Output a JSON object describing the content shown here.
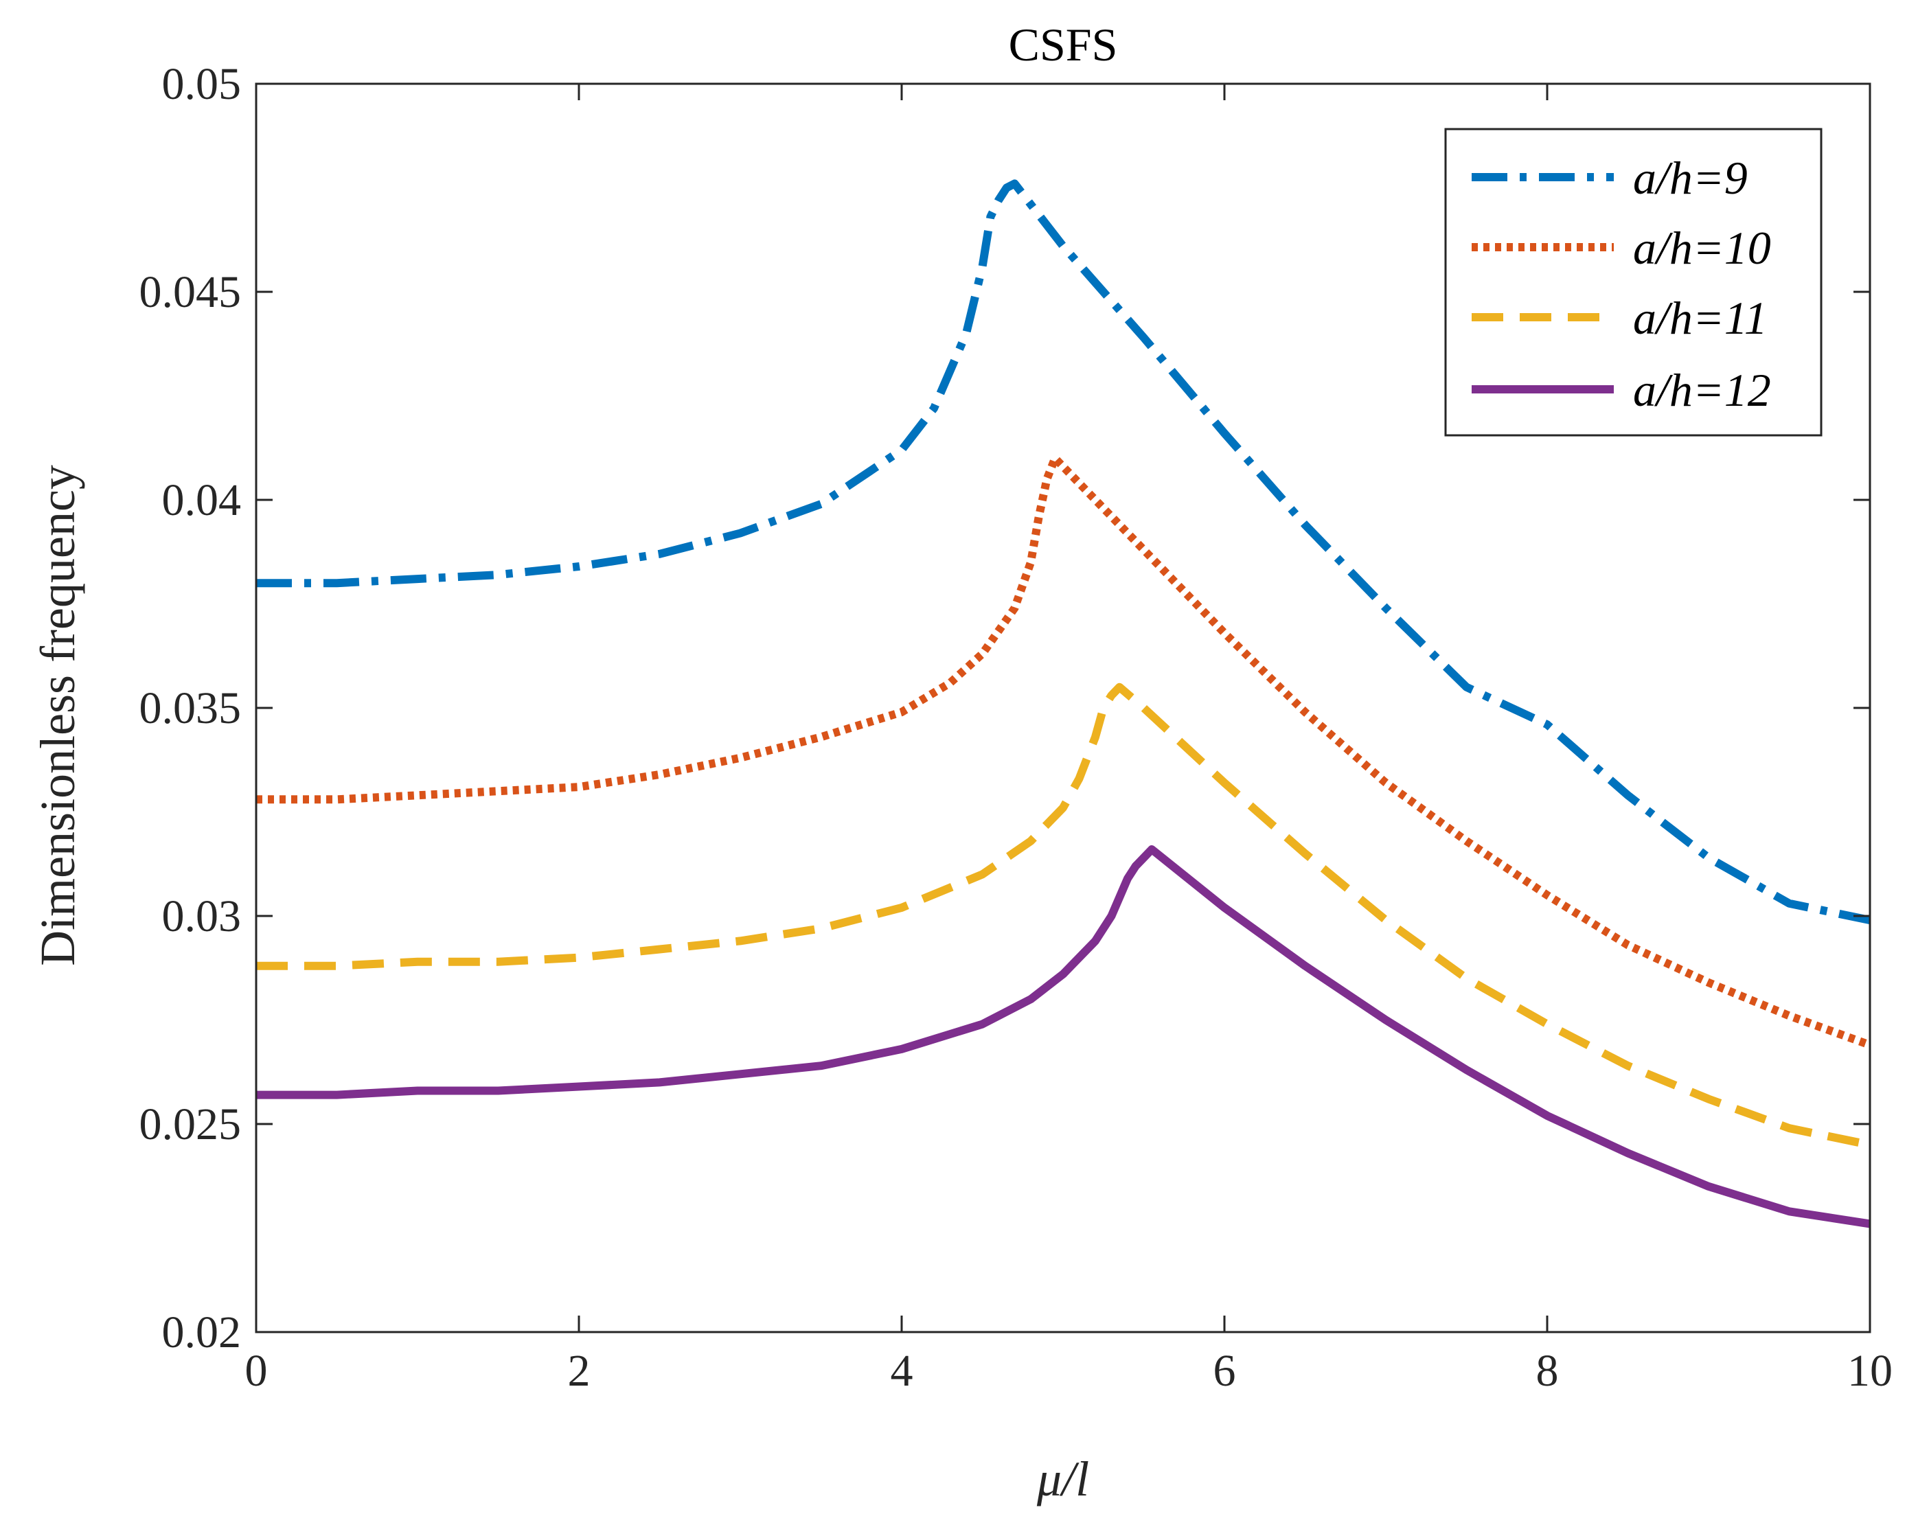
{
  "chart_data": {
    "type": "line",
    "title": "CSFS",
    "xlabel": "μ/l",
    "ylabel": "Dimensionless frequency",
    "xlim": [
      0,
      10
    ],
    "ylim": [
      0.02,
      0.05
    ],
    "xticks": [
      0,
      2,
      4,
      6,
      8,
      10
    ],
    "xtick_labels": [
      "0",
      "2",
      "4",
      "6",
      "8",
      "10"
    ],
    "yticks": [
      0.02,
      0.025,
      0.03,
      0.035,
      0.04,
      0.045,
      0.05
    ],
    "ytick_labels": [
      "0.02",
      "0.025",
      "0.03",
      "0.035",
      "0.04",
      "0.045",
      "0.05"
    ],
    "grid": false,
    "legend_position": "top-right",
    "series": [
      {
        "name": "a/h=9",
        "color": "#0072BD",
        "style": "dashdot",
        "x": [
          0,
          0.5,
          1.0,
          1.5,
          2.0,
          2.5,
          3.0,
          3.5,
          4.0,
          4.2,
          4.4,
          4.5,
          4.55,
          4.6,
          4.65,
          4.7,
          5.0,
          5.5,
          6.0,
          6.5,
          7.0,
          7.5,
          8.0,
          8.5,
          9.0,
          9.5,
          10.0
        ],
        "y": [
          0.038,
          0.038,
          0.0381,
          0.0382,
          0.0384,
          0.0387,
          0.0392,
          0.0399,
          0.0412,
          0.0422,
          0.044,
          0.0456,
          0.0468,
          0.0472,
          0.0475,
          0.0476,
          0.0461,
          0.0439,
          0.0416,
          0.0394,
          0.0374,
          0.0355,
          0.0346,
          0.0329,
          0.0314,
          0.0303,
          0.0299
        ]
      },
      {
        "name": "a/h=10",
        "color": "#D95319",
        "style": "dotted",
        "x": [
          0,
          0.5,
          1.0,
          1.5,
          2.0,
          2.5,
          3.0,
          3.5,
          4.0,
          4.3,
          4.5,
          4.7,
          4.8,
          4.85,
          4.9,
          4.95,
          5.0,
          5.5,
          6.0,
          6.5,
          7.0,
          7.5,
          8.0,
          8.5,
          9.0,
          9.5,
          10.0
        ],
        "y": [
          0.0328,
          0.0328,
          0.0329,
          0.033,
          0.0331,
          0.0334,
          0.0338,
          0.0343,
          0.0349,
          0.0356,
          0.0363,
          0.0374,
          0.0385,
          0.0396,
          0.0405,
          0.041,
          0.0408,
          0.0388,
          0.0368,
          0.0349,
          0.0332,
          0.0318,
          0.0305,
          0.0293,
          0.0284,
          0.0276,
          0.0269
        ]
      },
      {
        "name": "a/h=11",
        "color": "#EDB120",
        "style": "dashed",
        "x": [
          0,
          0.5,
          1.0,
          1.5,
          2.0,
          2.5,
          3.0,
          3.5,
          4.0,
          4.5,
          4.8,
          5.0,
          5.1,
          5.2,
          5.25,
          5.3,
          5.35,
          5.5,
          6.0,
          6.5,
          7.0,
          7.5,
          8.0,
          8.5,
          9.0,
          9.5,
          10.0
        ],
        "y": [
          0.0288,
          0.0288,
          0.0289,
          0.0289,
          0.029,
          0.0292,
          0.0294,
          0.0297,
          0.0302,
          0.031,
          0.0318,
          0.0326,
          0.0333,
          0.0343,
          0.035,
          0.0353,
          0.0355,
          0.035,
          0.0332,
          0.0315,
          0.0299,
          0.0285,
          0.0274,
          0.0264,
          0.0256,
          0.0249,
          0.0245
        ]
      },
      {
        "name": "a/h=12",
        "color": "#7E2F8E",
        "style": "solid",
        "x": [
          0,
          0.5,
          1.0,
          1.5,
          2.0,
          2.5,
          3.0,
          3.5,
          4.0,
          4.5,
          4.8,
          5.0,
          5.2,
          5.3,
          5.4,
          5.45,
          5.5,
          5.55,
          6.0,
          6.5,
          7.0,
          7.5,
          8.0,
          8.5,
          9.0,
          9.5,
          10.0
        ],
        "y": [
          0.0257,
          0.0257,
          0.0258,
          0.0258,
          0.0259,
          0.026,
          0.0262,
          0.0264,
          0.0268,
          0.0274,
          0.028,
          0.0286,
          0.0294,
          0.03,
          0.0309,
          0.0312,
          0.0314,
          0.0316,
          0.0302,
          0.0288,
          0.0275,
          0.0263,
          0.0252,
          0.0243,
          0.0235,
          0.0229,
          0.0226
        ]
      }
    ]
  }
}
